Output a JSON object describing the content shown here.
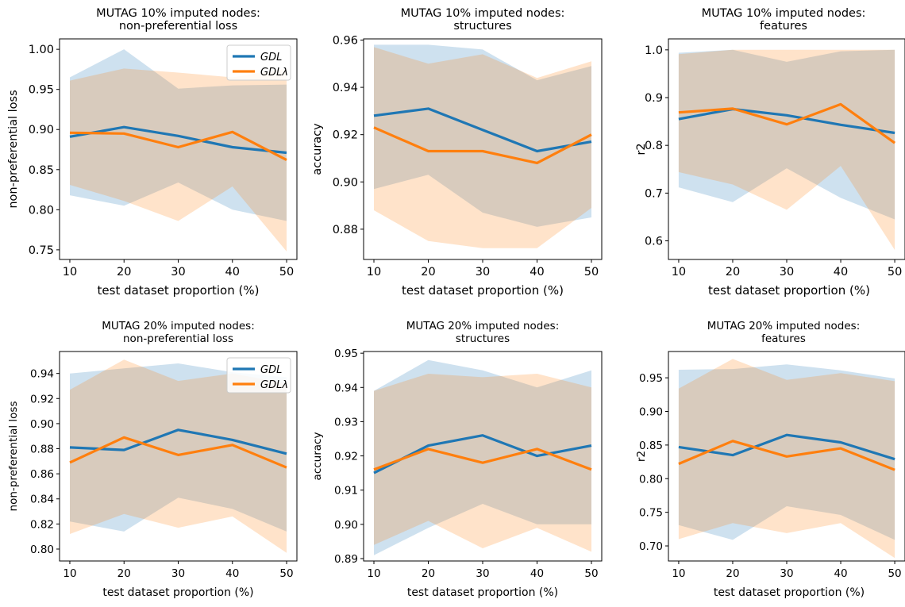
{
  "colors": {
    "gdl": "#1f77b4",
    "gdl_lambda": "#ff7f0e"
  },
  "chart_data": [
    {
      "type": "line",
      "title": [
        "MUTAG 10% imputed nodes:",
        "non-preferential loss"
      ],
      "xlabel": "test dataset proportion (%)",
      "ylabel": "non-preferential loss",
      "x": [
        10,
        20,
        30,
        40,
        50
      ],
      "ylim": [
        0.738,
        1.013
      ],
      "yticks": [
        "0.75",
        "0.80",
        "0.85",
        "0.90",
        "0.95",
        "1.00"
      ],
      "legend": "top-right",
      "series": [
        {
          "name": "GDL",
          "values": [
            0.891,
            0.903,
            0.892,
            0.878,
            0.871
          ],
          "lower": [
            0.818,
            0.805,
            0.834,
            0.8,
            0.786
          ],
          "upper": [
            0.965,
            1.0,
            0.951,
            0.955,
            0.956
          ]
        },
        {
          "name": "GDLλ",
          "values": [
            0.896,
            0.895,
            0.878,
            0.897,
            0.862
          ],
          "lower": [
            0.831,
            0.811,
            0.786,
            0.829,
            0.748
          ],
          "upper": [
            0.961,
            0.976,
            0.971,
            0.965,
            0.976
          ]
        }
      ]
    },
    {
      "type": "line",
      "title": [
        "MUTAG 10% imputed nodes:",
        "structures"
      ],
      "xlabel": "test dataset proportion (%)",
      "ylabel": "accuracy",
      "x": [
        10,
        20,
        30,
        40,
        50
      ],
      "ylim": [
        0.8672,
        0.9605
      ],
      "yticks": [
        "0.88",
        "0.90",
        "0.92",
        "0.94",
        "0.96"
      ],
      "legend": "none",
      "series": [
        {
          "name": "GDL",
          "values": [
            0.928,
            0.931,
            0.922,
            0.913,
            0.917
          ],
          "lower": [
            0.897,
            0.903,
            0.887,
            0.881,
            0.885
          ],
          "upper": [
            0.958,
            0.958,
            0.956,
            0.943,
            0.949
          ]
        },
        {
          "name": "GDLλ",
          "values": [
            0.923,
            0.913,
            0.913,
            0.908,
            0.92
          ],
          "lower": [
            0.888,
            0.875,
            0.872,
            0.872,
            0.889
          ],
          "upper": [
            0.957,
            0.95,
            0.954,
            0.944,
            0.951
          ]
        }
      ]
    },
    {
      "type": "line",
      "title": [
        "MUTAG 10% imputed nodes:",
        "features"
      ],
      "xlabel": "test dataset proportion (%)",
      "ylabel": "r2",
      "x": [
        10,
        20,
        30,
        40,
        50
      ],
      "ylim": [
        0.561,
        1.023
      ],
      "yticks": [
        "0.6",
        "0.7",
        "0.8",
        "0.9",
        "1.0"
      ],
      "legend": "none",
      "series": [
        {
          "name": "GDL",
          "values": [
            0.855,
            0.876,
            0.863,
            0.843,
            0.826
          ],
          "lower": [
            0.712,
            0.681,
            0.752,
            0.69,
            0.645
          ],
          "upper": [
            0.994,
            1.0,
            0.975,
            0.997,
            1.0
          ]
        },
        {
          "name": "GDLλ",
          "values": [
            0.869,
            0.877,
            0.844,
            0.886,
            0.805
          ],
          "lower": [
            0.744,
            0.718,
            0.665,
            0.757,
            0.581
          ],
          "upper": [
            0.991,
            1.0,
            1.0,
            1.0,
            1.0
          ]
        }
      ]
    },
    {
      "type": "line",
      "title": [
        "MUTAG 20% imputed nodes:",
        "non-preferential loss"
      ],
      "xlabel": "test dataset proportion (%)",
      "ylabel": "non-preferential loss",
      "x": [
        10,
        20,
        30,
        40,
        50
      ],
      "ylim": [
        0.7905,
        0.9575
      ],
      "yticks": [
        "0.80",
        "0.82",
        "0.84",
        "0.86",
        "0.88",
        "0.90",
        "0.92",
        "0.94"
      ],
      "legend": "top-right",
      "series": [
        {
          "name": "GDL",
          "values": [
            0.881,
            0.879,
            0.895,
            0.887,
            0.876
          ],
          "lower": [
            0.822,
            0.814,
            0.841,
            0.832,
            0.814
          ],
          "upper": [
            0.94,
            0.944,
            0.948,
            0.941,
            0.937
          ]
        },
        {
          "name": "GDLλ",
          "values": [
            0.869,
            0.889,
            0.875,
            0.883,
            0.865
          ],
          "lower": [
            0.812,
            0.828,
            0.817,
            0.826,
            0.797
          ],
          "upper": [
            0.927,
            0.951,
            0.934,
            0.94,
            0.932
          ]
        }
      ]
    },
    {
      "type": "line",
      "title": [
        "MUTAG 20% imputed nodes:",
        "structures"
      ],
      "xlabel": "test dataset proportion (%)",
      "ylabel": "accuracy",
      "x": [
        10,
        20,
        30,
        40,
        50
      ],
      "ylim": [
        0.8893,
        0.9505
      ],
      "yticks": [
        "0.89",
        "0.90",
        "0.91",
        "0.92",
        "0.93",
        "0.94",
        "0.95"
      ],
      "legend": "none",
      "series": [
        {
          "name": "GDL",
          "values": [
            0.915,
            0.923,
            0.926,
            0.92,
            0.923
          ],
          "lower": [
            0.891,
            0.899,
            0.906,
            0.9,
            0.9
          ],
          "upper": [
            0.939,
            0.948,
            0.945,
            0.94,
            0.945
          ]
        },
        {
          "name": "GDLλ",
          "values": [
            0.916,
            0.922,
            0.918,
            0.922,
            0.916
          ],
          "lower": [
            0.894,
            0.901,
            0.893,
            0.899,
            0.892
          ],
          "upper": [
            0.939,
            0.944,
            0.943,
            0.944,
            0.94
          ]
        }
      ]
    },
    {
      "type": "line",
      "title": [
        "MUTAG 20% imputed nodes:",
        "features"
      ],
      "xlabel": "test dataset proportion (%)",
      "ylabel": "r2",
      "x": [
        10,
        20,
        30,
        40,
        50
      ],
      "ylim": [
        0.6776,
        0.9891
      ],
      "yticks": [
        "0.70",
        "0.75",
        "0.80",
        "0.85",
        "0.90",
        "0.95"
      ],
      "legend": "none",
      "series": [
        {
          "name": "GDL",
          "values": [
            0.847,
            0.835,
            0.865,
            0.854,
            0.829
          ],
          "lower": [
            0.731,
            0.709,
            0.759,
            0.746,
            0.709
          ],
          "upper": [
            0.962,
            0.963,
            0.97,
            0.961,
            0.949
          ]
        },
        {
          "name": "GDLλ",
          "values": [
            0.822,
            0.856,
            0.833,
            0.845,
            0.813
          ],
          "lower": [
            0.71,
            0.734,
            0.719,
            0.734,
            0.682
          ],
          "upper": [
            0.934,
            0.978,
            0.947,
            0.957,
            0.945
          ]
        }
      ]
    }
  ]
}
